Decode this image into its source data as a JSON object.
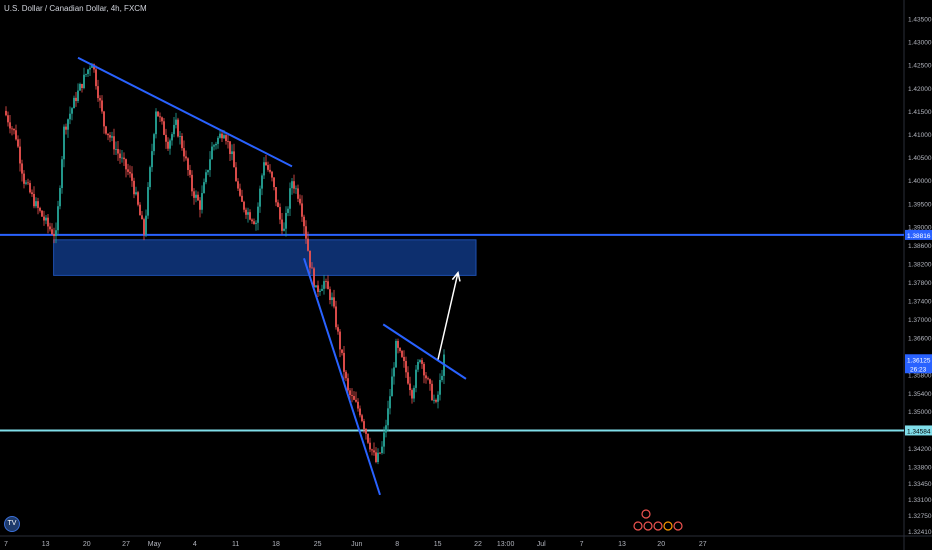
{
  "header": {
    "title": "U.S. Dollar / Canadian Dollar, 4h, FXCM"
  },
  "chart_data": {
    "type": "candlestick",
    "ylim": [
      1.323,
      1.439
    ],
    "price_ticks": [
      "1.43500",
      "1.43000",
      "1.42500",
      "1.42000",
      "1.41500",
      "1.41000",
      "1.40500",
      "1.40000",
      "1.39500",
      "1.39000",
      "1.38600",
      "1.38200",
      "1.37800",
      "1.37400",
      "1.37000",
      "1.36600",
      "1.36200",
      "1.35800",
      "1.35400",
      "1.35000",
      "1.34600",
      "1.34200",
      "1.33800",
      "1.33450",
      "1.33100",
      "1.32750",
      "1.32410"
    ],
    "date_ticks": [
      "7",
      "13",
      "20",
      "27",
      "May",
      "4",
      "11",
      "18",
      "25",
      "Jun",
      "8",
      "15",
      "22",
      "13:00",
      "Jul",
      "7",
      "13",
      "20",
      "27"
    ],
    "time_range": [
      0,
      160
    ],
    "date_tick_positions": [
      0.5,
      10.4,
      20.7,
      30.5,
      37.6,
      47.7,
      57.9,
      68.0,
      78.4,
      88.2,
      98.3,
      108.4,
      118.5,
      125.4,
      134.3,
      144.4,
      154.5,
      164.3,
      174.7
    ],
    "levels": [
      {
        "name": "resistance",
        "price": 1.38816,
        "label": "1.38816",
        "color": "#2962ff"
      },
      {
        "name": "support",
        "price": 1.34584,
        "label": "1.34584",
        "color": "#80deea"
      }
    ],
    "last_price": {
      "label": "1.36125",
      "countdown": "26:23",
      "color": "#2962ff"
    },
    "zone": {
      "price_top": 1.3871,
      "price_bottom": 1.3794,
      "t_start": 12.4,
      "t_end": 118.0,
      "color": "#0d2f6e"
    },
    "trendlines": [
      {
        "t1": 18.5,
        "p1": 1.4265,
        "t2": 72.0,
        "p2": 1.403,
        "color": "#2962ff"
      },
      {
        "t1": 75.0,
        "p1": 1.3831,
        "t2": 94.0,
        "p2": 1.3319,
        "color": "#2962ff"
      },
      {
        "t1": 94.8,
        "p1": 1.3688,
        "t2": 115.5,
        "p2": 1.357,
        "color": "#2962ff"
      }
    ],
    "projection_arrow": {
      "t1": 108.5,
      "p1": 1.3612,
      "t2": 113.5,
      "p2": 1.38,
      "color": "#ffffff"
    },
    "candle_color_up": "#26a69a",
    "candle_color_down": "#ef5350",
    "keypoints": [
      [
        0,
        1.415
      ],
      [
        3,
        1.4095
      ],
      [
        5,
        1.4
      ],
      [
        8,
        1.3945
      ],
      [
        11,
        1.39
      ],
      [
        13,
        1.388
      ],
      [
        15,
        1.411
      ],
      [
        18,
        1.418
      ],
      [
        22,
        1.426
      ],
      [
        25,
        1.412
      ],
      [
        29,
        1.405
      ],
      [
        32,
        1.4
      ],
      [
        35,
        1.3885
      ],
      [
        38,
        1.4155
      ],
      [
        41,
        1.408
      ],
      [
        43,
        1.412
      ],
      [
        45,
        1.406
      ],
      [
        47,
        1.398
      ],
      [
        49,
        1.3945
      ],
      [
        52,
        1.407
      ],
      [
        55,
        1.411
      ],
      [
        57,
        1.405
      ],
      [
        59,
        1.3955
      ],
      [
        61,
        1.393
      ],
      [
        63,
        1.391
      ],
      [
        65,
        1.4045
      ],
      [
        67,
        1.4
      ],
      [
        69,
        1.3915
      ],
      [
        70,
        1.389
      ],
      [
        72,
        1.4
      ],
      [
        74,
        1.396
      ],
      [
        75.5,
        1.388
      ],
      [
        76.5,
        1.382
      ],
      [
        78,
        1.376
      ],
      [
        80,
        1.378
      ],
      [
        82,
        1.374
      ],
      [
        84,
        1.364
      ],
      [
        86,
        1.354
      ],
      [
        89,
        1.35
      ],
      [
        91,
        1.344
      ],
      [
        93,
        1.339
      ],
      [
        94.5,
        1.342
      ],
      [
        96,
        1.35
      ],
      [
        98,
        1.364
      ],
      [
        100,
        1.36
      ],
      [
        102,
        1.354
      ],
      [
        104,
        1.362
      ],
      [
        106,
        1.356
      ],
      [
        108,
        1.351
      ],
      [
        110,
        1.3612
      ]
    ]
  }
}
